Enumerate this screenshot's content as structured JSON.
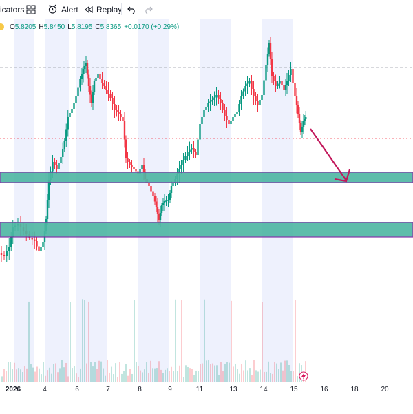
{
  "toolbar": {
    "indicators_label": "icators",
    "alert_label": "Alert",
    "replay_label": "Replay"
  },
  "ohlc": {
    "o_label": "O",
    "o_value": "5.8205",
    "h_label": "H",
    "h_value": "5.8450",
    "l_label": "L",
    "l_value": "5.8195",
    "c_label": "C",
    "c_value": "5.8365",
    "change": "+0.0170 (+0.29%)"
  },
  "colors": {
    "up": "#089981",
    "down": "#f23645",
    "zone_fill": "#4db6a3",
    "zone_border": "#7b1fa2",
    "arrow": "#c2185b",
    "session_shade": "#eef1fd"
  },
  "xaxis": {
    "labels": [
      {
        "text": "2026",
        "bold": true
      },
      {
        "text": "4"
      },
      {
        "text": "6"
      },
      {
        "text": "7"
      },
      {
        "text": "8"
      },
      {
        "text": "9"
      },
      {
        "text": "11"
      },
      {
        "text": "13"
      },
      {
        "text": "14"
      },
      {
        "text": "15"
      },
      {
        "text": "16"
      },
      {
        "text": "18"
      },
      {
        "text": "20"
      }
    ]
  },
  "chart_data": {
    "type": "candlestick",
    "annotations": [
      "two support zones",
      "down arrow toward upper zone"
    ]
  }
}
